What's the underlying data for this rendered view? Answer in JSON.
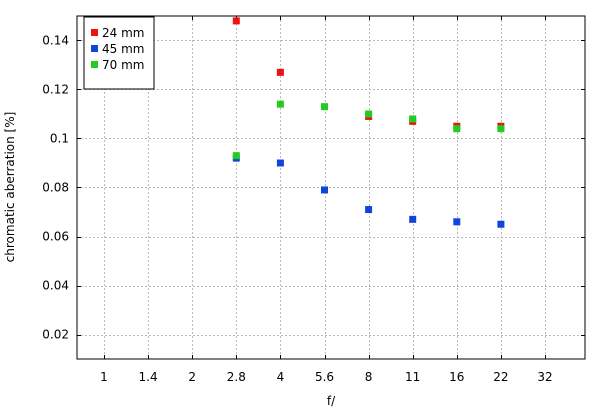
{
  "chart_data": {
    "type": "scatter",
    "title": "",
    "xlabel": "f/",
    "ylabel": "chromatic aberration [%]",
    "x_categories": [
      "1",
      "1.4",
      "2",
      "2.8",
      "4",
      "5.6",
      "8",
      "11",
      "16",
      "22",
      "32"
    ],
    "y_ticks": [
      "0.02",
      "0.04",
      "0.06",
      "0.08",
      "0.1",
      "0.12",
      "0.14"
    ],
    "ylim": [
      0.01,
      0.15
    ],
    "grid": true,
    "legend_position": "top-left",
    "series": [
      {
        "name": "24 mm",
        "color": "#ee1111",
        "points": [
          {
            "x": "2.8",
            "y": 0.148
          },
          {
            "x": "4",
            "y": 0.127
          },
          {
            "x": "8",
            "y": 0.109
          },
          {
            "x": "11",
            "y": 0.107
          },
          {
            "x": "16",
            "y": 0.105
          },
          {
            "x": "22",
            "y": 0.105
          }
        ]
      },
      {
        "name": "45 mm",
        "color": "#1144dd",
        "points": [
          {
            "x": "2.8",
            "y": 0.092
          },
          {
            "x": "4",
            "y": 0.09
          },
          {
            "x": "5.6",
            "y": 0.079
          },
          {
            "x": "8",
            "y": 0.071
          },
          {
            "x": "11",
            "y": 0.067
          },
          {
            "x": "16",
            "y": 0.066
          },
          {
            "x": "22",
            "y": 0.065
          }
        ]
      },
      {
        "name": "70 mm",
        "color": "#22cc22",
        "points": [
          {
            "x": "2.8",
            "y": 0.093
          },
          {
            "x": "4",
            "y": 0.114
          },
          {
            "x": "5.6",
            "y": 0.113
          },
          {
            "x": "8",
            "y": 0.11
          },
          {
            "x": "11",
            "y": 0.108
          },
          {
            "x": "16",
            "y": 0.104
          },
          {
            "x": "22",
            "y": 0.104
          }
        ]
      }
    ]
  }
}
